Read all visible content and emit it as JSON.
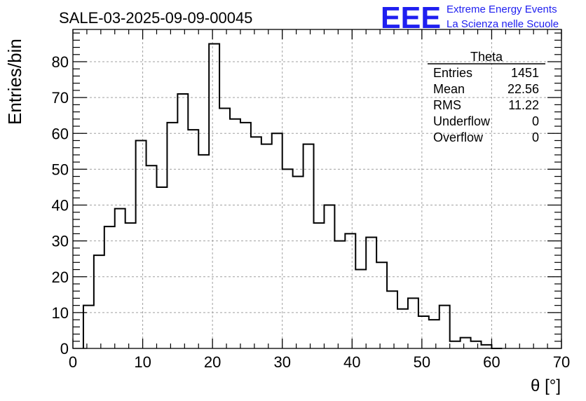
{
  "chart_data": {
    "type": "bar",
    "title": "SALE-03-2025-09-09-00045",
    "xlabel": "θ [°]",
    "ylabel": "Entries/bin",
    "xlim": [
      0,
      70
    ],
    "ylim": [
      0,
      89
    ],
    "x_ticks": [
      "0",
      "10",
      "20",
      "30",
      "40",
      "50",
      "60",
      "70"
    ],
    "y_ticks": [
      "0",
      "10",
      "20",
      "30",
      "40",
      "50",
      "60",
      "70",
      "80"
    ],
    "grid": true,
    "bin_width": 1.5,
    "x_start": 1.5,
    "values": [
      12,
      26,
      34,
      39,
      35,
      58,
      51,
      45,
      63,
      71,
      61,
      54,
      85,
      67,
      64,
      63,
      59,
      57,
      60,
      50,
      48,
      57,
      35,
      40,
      30,
      32,
      22,
      31,
      24,
      16,
      11,
      14,
      9,
      8,
      12,
      2,
      3,
      2,
      1,
      0
    ],
    "stats": {
      "title": "Theta",
      "rows": [
        {
          "label": "Entries",
          "value": "1451"
        },
        {
          "label": "Mean",
          "value": "22.56"
        },
        {
          "label": "RMS",
          "value": "11.22"
        },
        {
          "label": "Underflow",
          "value": "0"
        },
        {
          "label": "Overflow",
          "value": "0"
        }
      ]
    }
  },
  "logo": {
    "mark": "EEE",
    "line1": "Extreme Energy Events",
    "line2": "La Scienza nelle Scuole"
  },
  "colors": {
    "logo": "#1f1ff0",
    "line": "#000000",
    "grid": "#a0a0a0"
  }
}
